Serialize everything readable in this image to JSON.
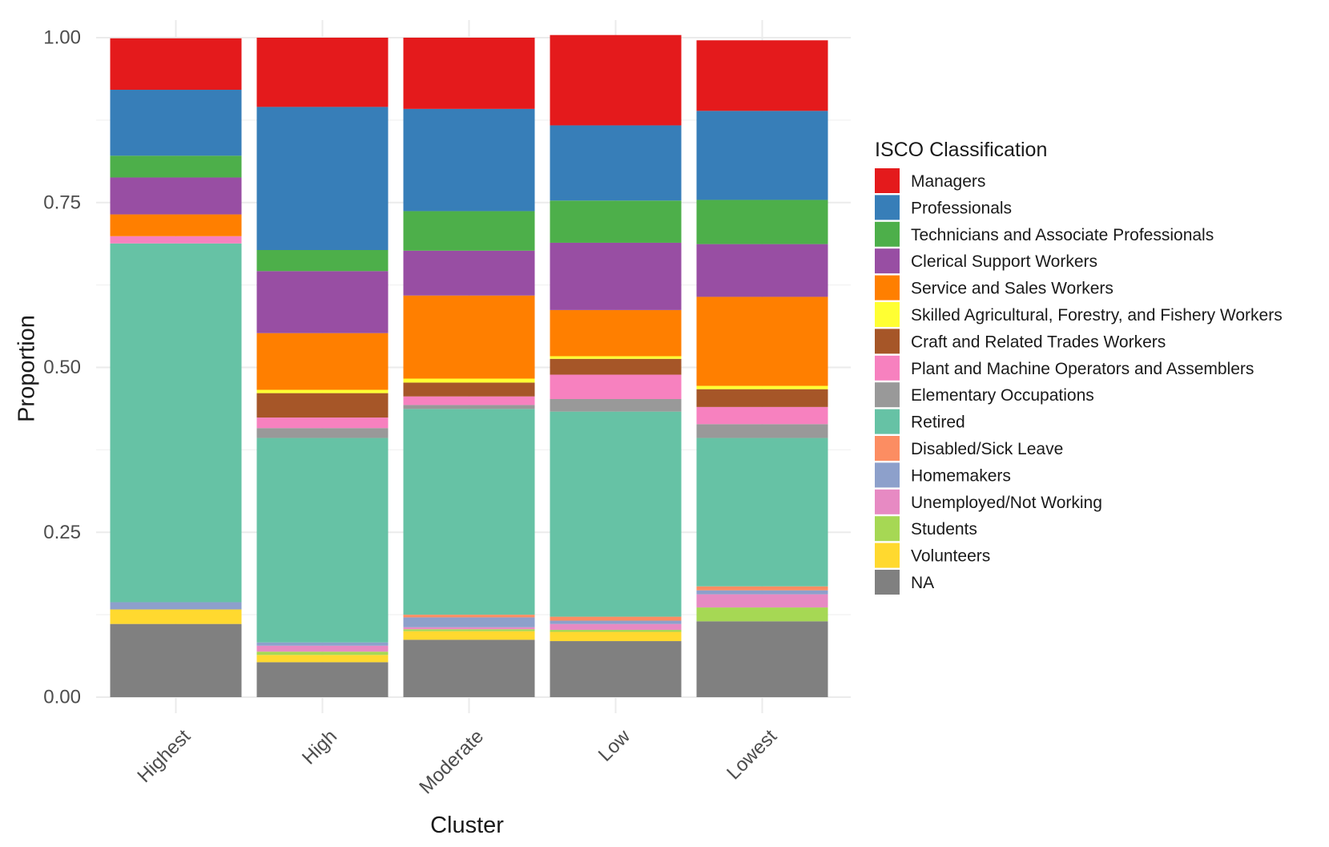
{
  "chart_data": {
    "type": "bar",
    "stacked": true,
    "xlabel": "Cluster",
    "ylabel": "Proportion",
    "ylim": [
      0,
      1
    ],
    "yticks": [
      "0.00",
      "0.25",
      "0.50",
      "0.75",
      "1.00"
    ],
    "ytick_values": [
      0,
      0.25,
      0.5,
      0.75,
      1.0
    ],
    "grid": true,
    "legend": {
      "title": "ISCO Classification",
      "position": "right"
    },
    "categories": [
      "Highest",
      "High",
      "Moderate",
      "Low",
      "Lowest"
    ],
    "series": [
      {
        "name": "Managers",
        "color": "#E41A1C",
        "values": [
          0.078,
          0.105,
          0.108,
          0.137,
          0.107
        ]
      },
      {
        "name": "Professionals",
        "color": "#377EB8",
        "values": [
          0.1,
          0.217,
          0.155,
          0.114,
          0.135
        ]
      },
      {
        "name": "Technicians and Associate Professionals",
        "color": "#4DAF4A",
        "values": [
          0.033,
          0.032,
          0.06,
          0.064,
          0.067
        ]
      },
      {
        "name": "Clerical Support Workers",
        "color": "#984EA3",
        "values": [
          0.056,
          0.094,
          0.068,
          0.102,
          0.08
        ]
      },
      {
        "name": "Service and Sales Workers",
        "color": "#FF7F00",
        "values": [
          0.033,
          0.086,
          0.126,
          0.07,
          0.135
        ]
      },
      {
        "name": "Skilled Agricultural, Forestry, and Fishery Workers",
        "color": "#FFFF33",
        "values": [
          0.0,
          0.005,
          0.006,
          0.004,
          0.005
        ]
      },
      {
        "name": "Craft and Related Trades Workers",
        "color": "#A65628",
        "values": [
          0.0,
          0.037,
          0.021,
          0.024,
          0.027
        ]
      },
      {
        "name": "Plant and Machine Operators and Assemblers",
        "color": "#F781BF",
        "values": [
          0.011,
          0.016,
          0.013,
          0.037,
          0.026
        ]
      },
      {
        "name": "Elementary Occupations",
        "color": "#999999",
        "values": [
          0.0,
          0.015,
          0.006,
          0.019,
          0.021
        ]
      },
      {
        "name": "Retired",
        "color": "#66C2A5",
        "values": [
          0.544,
          0.31,
          0.312,
          0.311,
          0.225
        ]
      },
      {
        "name": "Disabled/Sick Leave",
        "color": "#FC8D62",
        "values": [
          0.0,
          0.0,
          0.004,
          0.006,
          0.006
        ]
      },
      {
        "name": "Homemakers",
        "color": "#8DA0CB",
        "values": [
          0.011,
          0.005,
          0.015,
          0.005,
          0.006
        ]
      },
      {
        "name": "Unemployed/Not Working",
        "color": "#E78AC3",
        "values": [
          0.0,
          0.009,
          0.003,
          0.009,
          0.02
        ]
      },
      {
        "name": "Students",
        "color": "#A6D854",
        "values": [
          0.0,
          0.005,
          0.003,
          0.003,
          0.021
        ]
      },
      {
        "name": "Volunteers",
        "color": "#FFD92F",
        "values": [
          0.022,
          0.011,
          0.013,
          0.014,
          0.0
        ]
      },
      {
        "name": "NA",
        "color": "#808080",
        "values": [
          0.111,
          0.053,
          0.087,
          0.085,
          0.115
        ]
      }
    ]
  }
}
